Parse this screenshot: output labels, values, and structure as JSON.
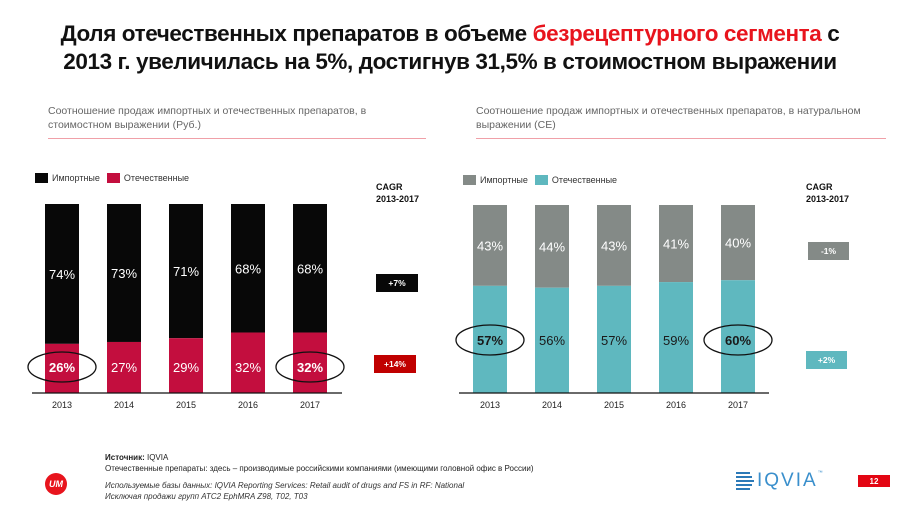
{
  "title": {
    "part1": "Доля отечественных препаратов в объеме ",
    "highlight": "безрецептурного сегмента",
    "part2": " с",
    "line2": "2013 г. увеличилась на 5%, достигнув 31,5% в стоимостном выражении"
  },
  "colors": {
    "accent_red": "#e8141d",
    "imported_value": "#080808",
    "domestic_value": "#c30e3e",
    "imported_volume": "#848a87",
    "domestic_volume": "#5fb8bf",
    "cagr_red": "#c00000"
  },
  "chart_data": [
    {
      "type": "bar",
      "stacked": true,
      "title": "Соотношение продаж импортных и отечественных препаратов, в стоимостном выражении  (Руб.)",
      "categories": [
        "2013",
        "2014",
        "2015",
        "2016",
        "2017"
      ],
      "series": [
        {
          "name": "Отечественные",
          "values": [
            26,
            27,
            29,
            32,
            32
          ],
          "labels": [
            "26%",
            "27%",
            "29%",
            "32%",
            "32%"
          ],
          "color": "#c30e3e"
        },
        {
          "name": "Импортные",
          "values": [
            74,
            73,
            71,
            68,
            68
          ],
          "labels": [
            "74%",
            "73%",
            "71%",
            "68%",
            "68%"
          ],
          "color": "#080808"
        }
      ],
      "legend": [
        {
          "name": "Импортные",
          "color": "#080808"
        },
        {
          "name": "Отечественные",
          "color": "#c30e3e"
        }
      ],
      "highlighted": [
        "2013",
        "2017"
      ],
      "ylim": [
        0,
        100
      ],
      "legend_position": "top-left",
      "cagr": {
        "heading1": "CAGR",
        "heading2": "2013-2017",
        "imported": "+7%",
        "domestic": "+14%"
      }
    },
    {
      "type": "bar",
      "stacked": true,
      "title": "Соотношение продаж импортных и отечественных препаратов, в натуральном выражении (СЕ)",
      "categories": [
        "2013",
        "2014",
        "2015",
        "2016",
        "2017"
      ],
      "series": [
        {
          "name": "Отечественные",
          "values": [
            57,
            56,
            57,
            59,
            60
          ],
          "labels": [
            "57%",
            "56%",
            "57%",
            "59%",
            "60%"
          ],
          "color": "#5fb8bf"
        },
        {
          "name": "Импортные",
          "values": [
            43,
            44,
            43,
            41,
            40
          ],
          "labels": [
            "43%",
            "44%",
            "43%",
            "41%",
            "40%"
          ],
          "color": "#848a87"
        }
      ],
      "legend": [
        {
          "name": "Импортные",
          "color": "#848a87"
        },
        {
          "name": "Отечественные",
          "color": "#5fb8bf"
        }
      ],
      "highlighted": [
        "2013",
        "2017"
      ],
      "ylim": [
        0,
        100
      ],
      "legend_position": "top-left",
      "cagr": {
        "heading1": "CAGR",
        "heading2": "2013-2017",
        "imported": "-1%",
        "domestic": "+2%"
      }
    }
  ],
  "footer": {
    "source_label": "Источник:",
    "source_value": " IQVIA",
    "note": "Отечественные препараты: здесь – производимые российскими компаниями (имеющими головной офис в России)",
    "db_note": "Используемые базы данных: IQVIA Reporting Services: Retail audit of drugs and FS in RF: National",
    "exclusion_note": "Исключая продажи групп ATC2 EphMRA Z98, T02, T03"
  },
  "logos": {
    "um": "UM",
    "iqvia": "IQVIA",
    "iqvia_tm": "™"
  },
  "page_number": "12"
}
